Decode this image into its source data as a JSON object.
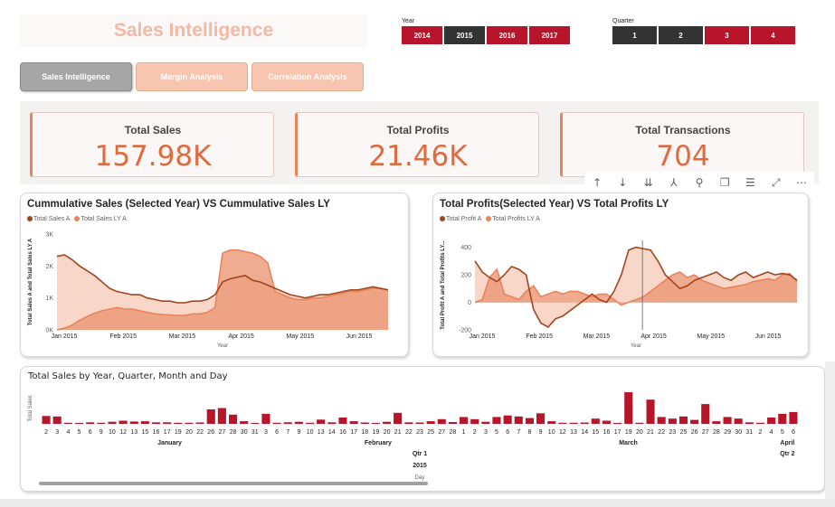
{
  "header": {
    "title": "Sales Intelligence"
  },
  "year_slicer": {
    "label": "Year",
    "options": [
      {
        "label": "2014",
        "selected": true
      },
      {
        "label": "2015",
        "selected": false
      },
      {
        "label": "2016",
        "selected": true
      },
      {
        "label": "2017",
        "selected": true
      }
    ]
  },
  "quarter_slicer": {
    "label": "Quarter",
    "options": [
      {
        "label": "1",
        "selected": false
      },
      {
        "label": "2",
        "selected": false
      },
      {
        "label": "3",
        "selected": true
      },
      {
        "label": "4",
        "selected": true
      }
    ]
  },
  "nav": {
    "sales_intelligence": "Sales Intelligence",
    "margin_analysis": "Margin Analysis",
    "correlation_analysis": "Correlation Analysis"
  },
  "kpis": [
    {
      "title": "Total Sales",
      "value": "157.98K"
    },
    {
      "title": "Total Profits",
      "value": "21.46K"
    },
    {
      "title": "Total Transactions",
      "value": "704"
    }
  ],
  "toolbar_icons": [
    "arrow-up-icon",
    "arrow-down-icon",
    "double-arrow-down-icon",
    "expand-hierarchy-icon",
    "pin-icon",
    "copy-icon",
    "filter-icon",
    "focus-mode-icon",
    "more-options-icon"
  ],
  "colors": {
    "accent": "#e06a3c",
    "brand_red": "#b8142a",
    "dark": "#333333",
    "series_a": "#a0451e",
    "series_ly": "#e8845c"
  },
  "chart_data": [
    {
      "type": "area",
      "title": "Cummulative Sales (Selected Year) VS Cummulative Sales LY",
      "xlabel": "Year",
      "ylabel": "Total Sales A and Total Sales LY A",
      "series": [
        {
          "name": "Total Sales A",
          "color": "#a0451e",
          "values": [
            2300,
            2350,
            2200,
            2000,
            1850,
            1700,
            1500,
            1300,
            1200,
            1150,
            1100,
            1100,
            1000,
            950,
            900,
            900,
            850,
            850,
            900,
            900,
            950,
            1100,
            1500,
            1600,
            1650,
            1700,
            1550,
            1500,
            1400,
            1300,
            1200,
            1100,
            1050,
            1000,
            1050,
            1100,
            1100,
            1150,
            1200,
            1250,
            1250,
            1300,
            1350,
            1300,
            1250
          ]
        },
        {
          "name": "Total Sales LY A",
          "color": "#e8845c",
          "values": [
            0,
            50,
            150,
            300,
            420,
            520,
            600,
            650,
            700,
            650,
            650,
            600,
            550,
            500,
            480,
            470,
            450,
            450,
            500,
            500,
            550,
            700,
            2400,
            2500,
            2500,
            2450,
            2400,
            2300,
            2100,
            1200,
            1100,
            1000,
            950,
            950,
            1000,
            1000,
            1050,
            1100,
            1150,
            1200,
            1200,
            1250,
            1300,
            1300,
            1250
          ]
        }
      ],
      "y_ticks": [
        "0K",
        "1K",
        "2K",
        "3K"
      ],
      "ylim": [
        0,
        3000
      ],
      "x_ticks": [
        "Jan 2015",
        "Feb 2015",
        "Mar 2015",
        "Apr 2015",
        "May 2015",
        "Jun 2015"
      ]
    },
    {
      "type": "area",
      "title": "Total Profits(Selected Year) VS Total Profits LY",
      "xlabel": "Year",
      "ylabel": "Total Profit A and Total Profits LY...",
      "series": [
        {
          "name": "Total Profit A",
          "color": "#a0451e",
          "values": [
            300,
            220,
            180,
            150,
            200,
            260,
            240,
            200,
            -50,
            -150,
            -180,
            -120,
            -100,
            -60,
            -20,
            20,
            60,
            20,
            0,
            80,
            200,
            380,
            400,
            390,
            380,
            300,
            200,
            150,
            100,
            120,
            160,
            180,
            200,
            220,
            180,
            160,
            200,
            220,
            180,
            200,
            220,
            200,
            210,
            200,
            160
          ]
        },
        {
          "name": "Total Profits LY A",
          "color": "#e8845c",
          "values": [
            0,
            20,
            180,
            240,
            60,
            40,
            20,
            80,
            120,
            40,
            60,
            80,
            60,
            80,
            80,
            60,
            40,
            60,
            60,
            20,
            -20,
            0,
            20,
            40,
            80,
            120,
            160,
            200,
            220,
            180,
            200,
            160,
            140,
            120,
            100,
            110,
            120,
            130,
            150,
            160,
            170,
            160,
            200,
            210,
            150
          ]
        }
      ],
      "y_ticks": [
        "-200",
        "0",
        "200",
        "400"
      ],
      "ylim": [
        -200,
        450
      ],
      "x_ticks": [
        "Jan 2015",
        "Feb 2015",
        "Mar 2015",
        "Apr 2015",
        "May 2015",
        "Jun 2015"
      ]
    },
    {
      "type": "bar",
      "title": "Total Sales by Year, Quarter, Month and Day",
      "ylabel": "Total Sales",
      "xlabel": "Day",
      "categories": [
        "2",
        "3",
        "4",
        "5",
        "6",
        "9",
        "10",
        "12",
        "13",
        "15",
        "16",
        "17",
        "19",
        "20",
        "22",
        "26",
        "27",
        "28",
        "30",
        "31",
        "3",
        "6",
        "7",
        "9",
        "10",
        "13",
        "14",
        "16",
        "17",
        "18",
        "19",
        "20",
        "21",
        "22",
        "23",
        "25",
        "27",
        "28",
        "1",
        "2",
        "3",
        "5",
        "6",
        "7",
        "8",
        "9",
        "10",
        "12",
        "13",
        "14",
        "15",
        "16",
        "17",
        "19",
        "20",
        "21",
        "22",
        "23",
        "25",
        "26",
        "27",
        "28",
        "29",
        "30",
        "31",
        "2",
        "4",
        "5",
        "6"
      ],
      "values": [
        30,
        28,
        4,
        3,
        6,
        4,
        8,
        12,
        9,
        10,
        6,
        6,
        4,
        4,
        5,
        55,
        60,
        35,
        10,
        3,
        38,
        4,
        6,
        8,
        4,
        16,
        6,
        24,
        10,
        5,
        3,
        8,
        42,
        6,
        5,
        10,
        18,
        7,
        26,
        18,
        8,
        26,
        32,
        28,
        22,
        40,
        10,
        4,
        4,
        5,
        20,
        12,
        3,
        120,
        4,
        92,
        26,
        20,
        28,
        15,
        75,
        10,
        26,
        20,
        6,
        4,
        24,
        38,
        45
      ],
      "values_unit": "relative",
      "month_labels": [
        "January",
        "February",
        "March",
        "April"
      ],
      "quarter_labels": [
        "Qtr 1",
        "Qtr 2"
      ],
      "year_label": "2015"
    }
  ]
}
